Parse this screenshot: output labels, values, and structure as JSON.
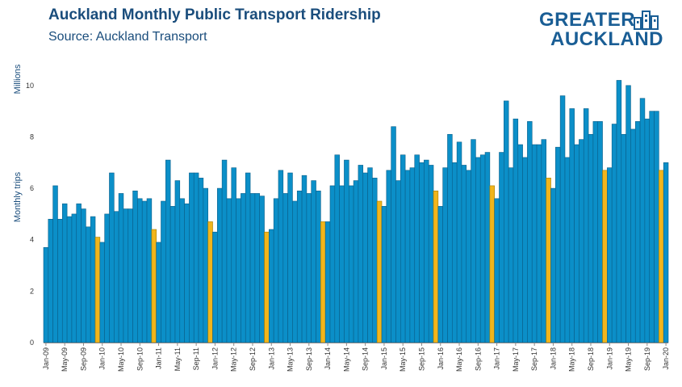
{
  "header": {
    "title": "Auckland Monthly Public Transport Ridership",
    "subtitle": "Source: Auckland Transport"
  },
  "logo": {
    "line1": "GREATER",
    "line2": "AUCKLAND",
    "icon": "city-buildings-icon"
  },
  "colors": {
    "bar": "#0b8fc8",
    "bar_stroke": "#0a5f8a",
    "highlight": "#f2b51b",
    "highlight_stroke": "#a67c00",
    "title": "#1a4d7c"
  },
  "chart_data": {
    "type": "bar",
    "ylabel": "Monthly trips",
    "yunit_label": "Millions",
    "ylim": [
      0,
      11
    ],
    "yticks": [
      0,
      2,
      4,
      6,
      8,
      10
    ],
    "grid": false,
    "legend": "none",
    "start": "Jan-09",
    "end": "Jan-20",
    "highlight_rule": "December bars shown in yellow",
    "xtick_labels": [
      "Jan-09",
      "May-09",
      "Sep-09",
      "Jan-10",
      "May-10",
      "Sep-10",
      "Jan-11",
      "May-11",
      "Sep-11",
      "Jan-12",
      "May-12",
      "Sep-12",
      "Jan-13",
      "May-13",
      "Sep-13",
      "Jan-14",
      "May-14",
      "Sep-14",
      "Jan-15",
      "May-15",
      "Sep-15",
      "Jan-16",
      "May-16",
      "Sep-16",
      "Jan-17",
      "May-17",
      "Sep-17",
      "Jan-18",
      "May-18",
      "Sep-18",
      "Jan-19",
      "May-19",
      "Sep-19",
      "Jan-20"
    ],
    "values": [
      3.7,
      4.8,
      6.1,
      4.8,
      5.4,
      4.9,
      5.0,
      5.4,
      5.2,
      4.5,
      4.9,
      4.1,
      3.9,
      5.0,
      6.6,
      5.1,
      5.8,
      5.2,
      5.2,
      5.9,
      5.6,
      5.5,
      5.6,
      4.4,
      3.9,
      5.5,
      7.1,
      5.3,
      6.3,
      5.6,
      5.4,
      6.6,
      6.6,
      6.4,
      6.0,
      4.7,
      4.3,
      6.0,
      7.1,
      5.6,
      6.8,
      5.6,
      5.8,
      6.6,
      5.8,
      5.8,
      5.7,
      4.3,
      4.4,
      5.6,
      6.7,
      5.8,
      6.6,
      5.5,
      5.9,
      6.5,
      5.8,
      6.3,
      5.9,
      4.7,
      4.7,
      6.1,
      7.3,
      6.1,
      7.1,
      6.1,
      6.3,
      6.9,
      6.6,
      6.8,
      6.4,
      5.5,
      5.3,
      6.7,
      8.4,
      6.3,
      7.3,
      6.7,
      6.8,
      7.3,
      7.0,
      7.1,
      6.9,
      5.9,
      5.3,
      6.8,
      8.1,
      7.0,
      7.8,
      6.9,
      6.7,
      7.9,
      7.2,
      7.3,
      7.4,
      6.1,
      5.6,
      7.4,
      9.4,
      6.8,
      8.7,
      7.7,
      7.2,
      8.6,
      7.7,
      7.7,
      7.9,
      6.4,
      6.0,
      7.6,
      9.6,
      7.2,
      9.1,
      7.7,
      7.9,
      9.1,
      8.1,
      8.6,
      8.6,
      6.7,
      6.8,
      8.5,
      10.2,
      8.1,
      10.0,
      8.3,
      8.6,
      9.5,
      8.7,
      9.0,
      9.0,
      6.7,
      7.0
    ]
  }
}
